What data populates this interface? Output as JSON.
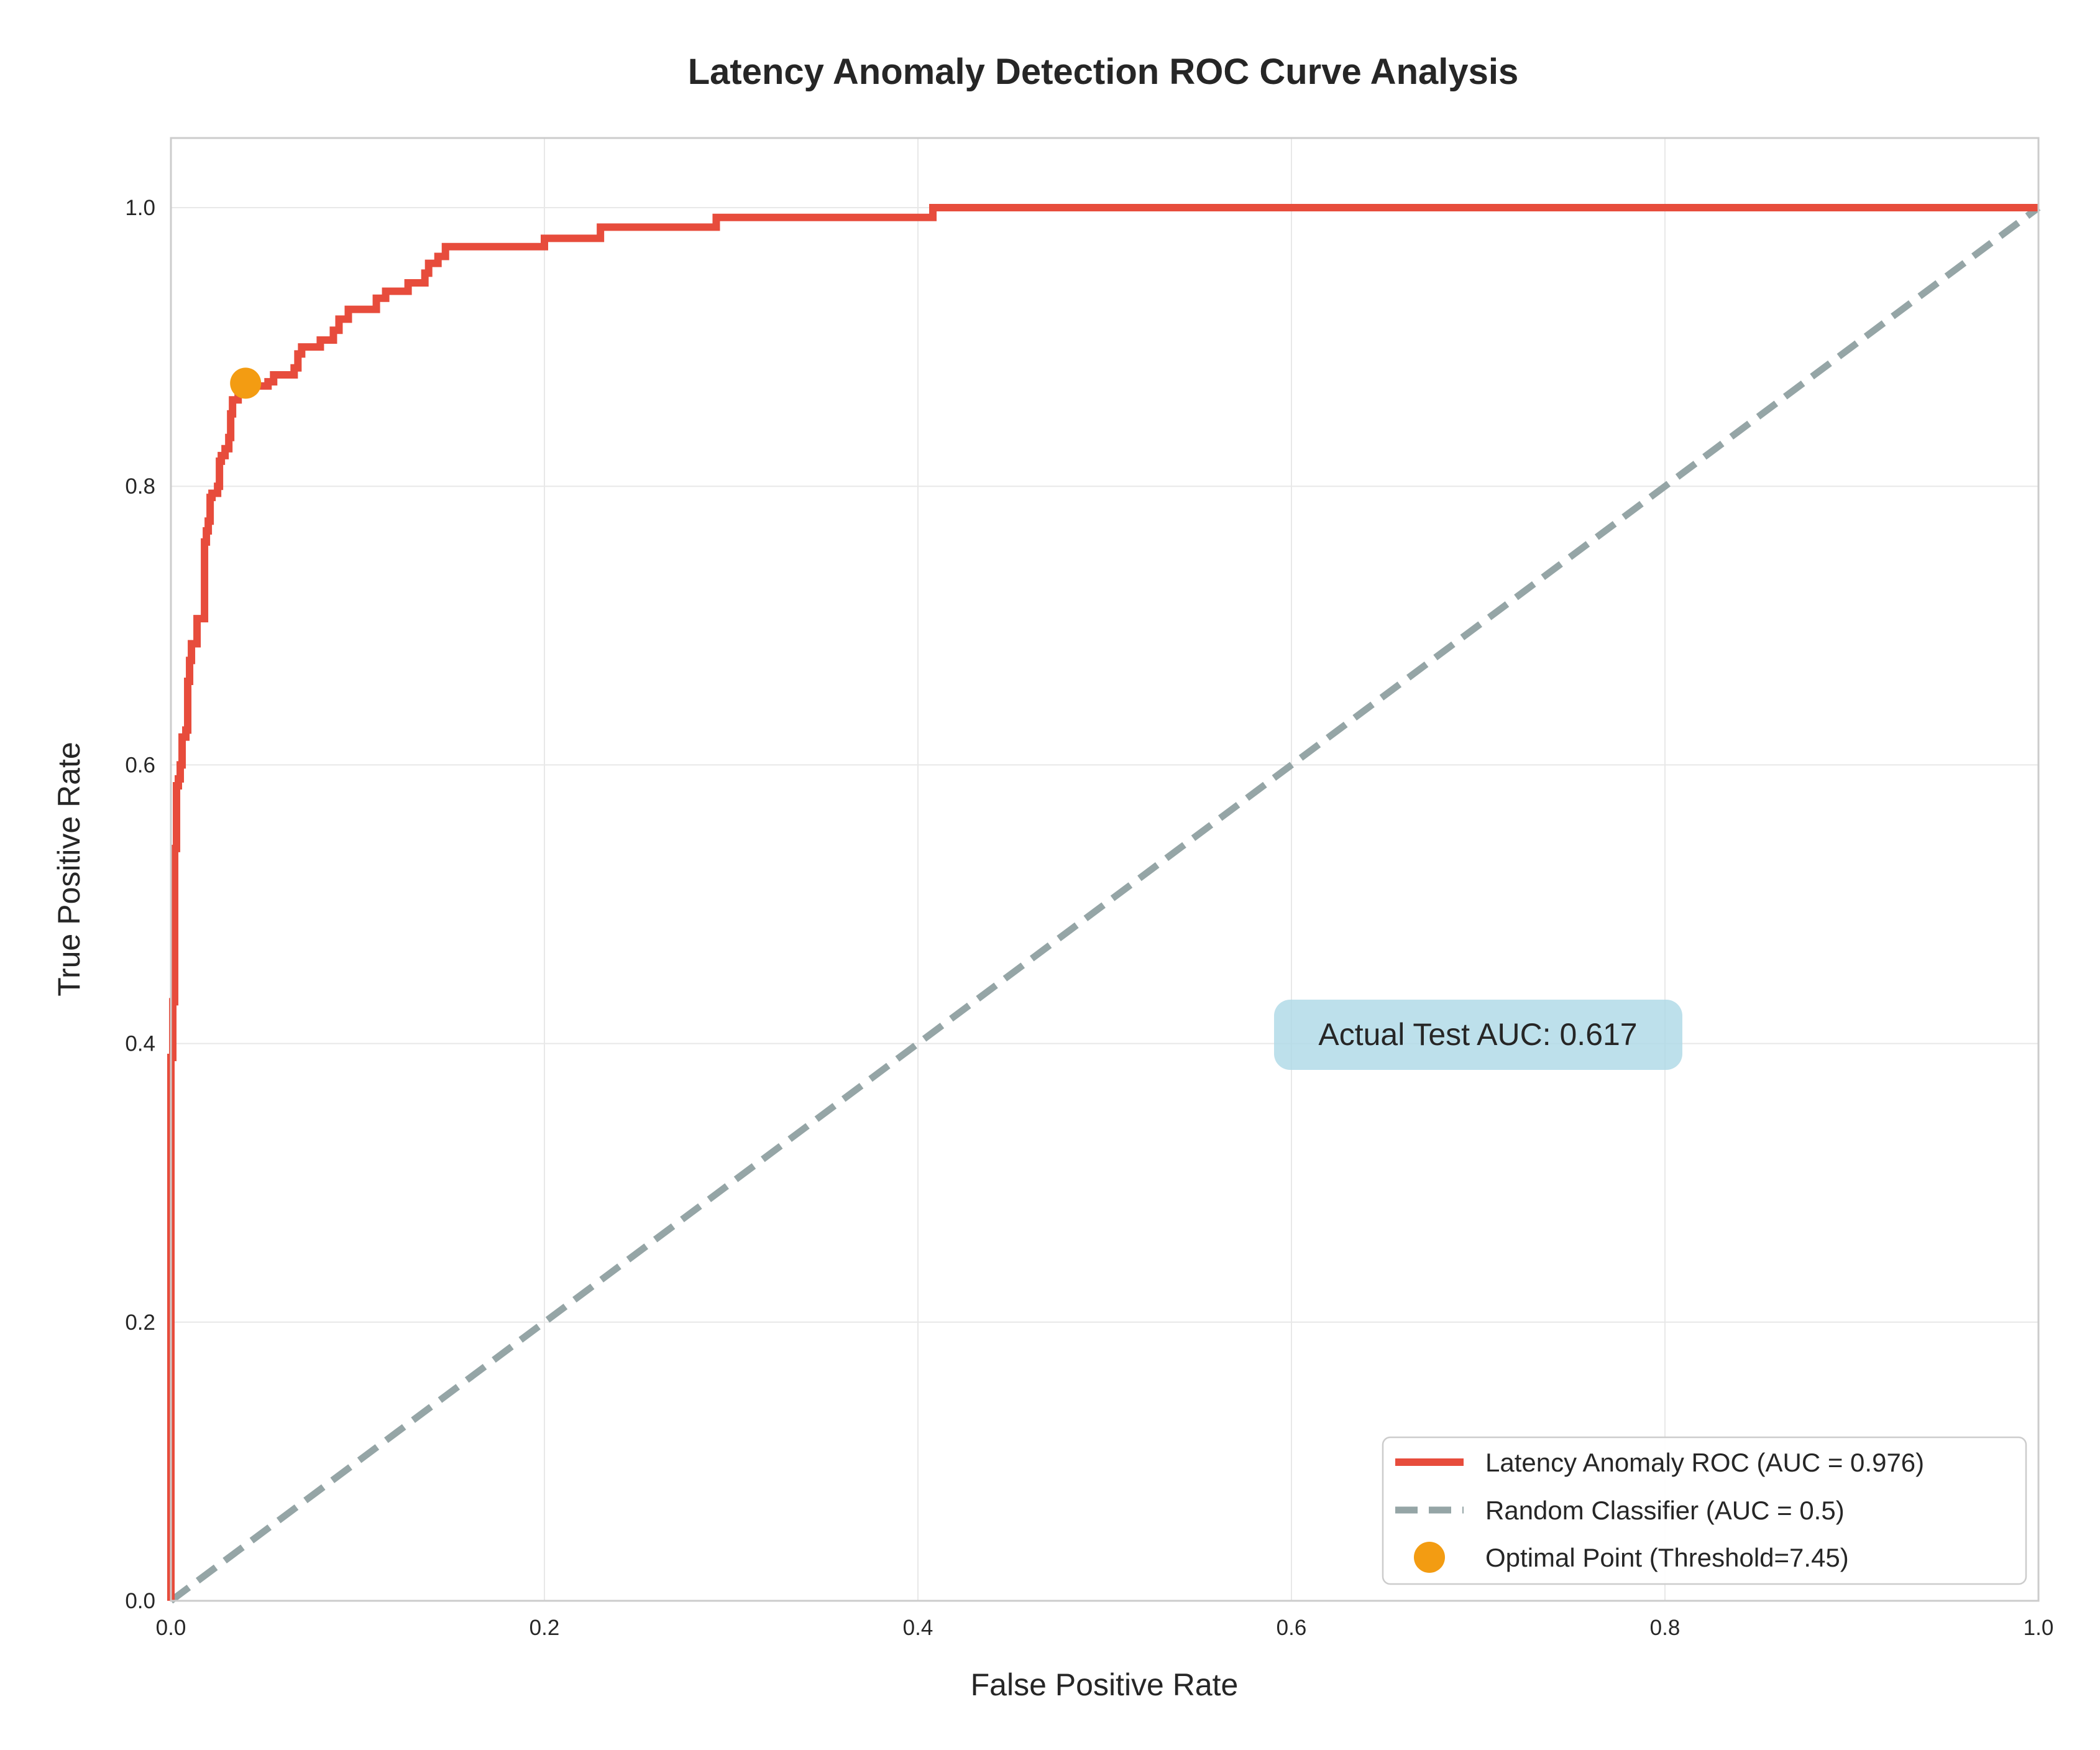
{
  "chart_data": {
    "type": "line",
    "title": "Latency Anomaly Detection ROC Curve Analysis",
    "xlabel": "False Positive Rate",
    "ylabel": "True Positive Rate",
    "xlim": [
      0,
      1
    ],
    "ylim": [
      0,
      1.05
    ],
    "x_ticks": [
      "0.0",
      "0.2",
      "0.4",
      "0.6",
      "0.8",
      "1.0"
    ],
    "y_ticks": [
      "0.0",
      "0.2",
      "0.4",
      "0.6",
      "0.8",
      "1.0"
    ],
    "grid": true,
    "legend_position": "lower-right",
    "series": [
      {
        "name": "Latency Anomaly ROC (AUC = 0.976)",
        "color": "#e74c3c",
        "style": "solid-step",
        "points": [
          [
            0.0,
            0.0
          ],
          [
            0.0,
            0.39
          ],
          [
            0.001,
            0.43
          ],
          [
            0.002,
            0.54
          ],
          [
            0.003,
            0.585
          ],
          [
            0.004,
            0.59
          ],
          [
            0.005,
            0.6
          ],
          [
            0.006,
            0.62
          ],
          [
            0.008,
            0.625
          ],
          [
            0.009,
            0.66
          ],
          [
            0.01,
            0.675
          ],
          [
            0.011,
            0.687
          ],
          [
            0.014,
            0.705
          ],
          [
            0.018,
            0.708
          ],
          [
            0.018,
            0.76
          ],
          [
            0.019,
            0.768
          ],
          [
            0.02,
            0.775
          ],
          [
            0.021,
            0.792
          ],
          [
            0.022,
            0.795
          ],
          [
            0.025,
            0.8
          ],
          [
            0.026,
            0.818
          ],
          [
            0.027,
            0.822
          ],
          [
            0.029,
            0.827
          ],
          [
            0.031,
            0.835
          ],
          [
            0.032,
            0.852
          ],
          [
            0.033,
            0.862
          ],
          [
            0.036,
            0.872
          ],
          [
            0.052,
            0.875
          ],
          [
            0.055,
            0.88
          ],
          [
            0.066,
            0.885
          ],
          [
            0.068,
            0.895
          ],
          [
            0.07,
            0.9
          ],
          [
            0.08,
            0.905
          ],
          [
            0.087,
            0.912
          ],
          [
            0.09,
            0.92
          ],
          [
            0.095,
            0.927
          ],
          [
            0.11,
            0.935
          ],
          [
            0.115,
            0.94
          ],
          [
            0.127,
            0.946
          ],
          [
            0.136,
            0.953
          ],
          [
            0.138,
            0.96
          ],
          [
            0.143,
            0.965
          ],
          [
            0.147,
            0.972
          ],
          [
            0.2,
            0.978
          ],
          [
            0.23,
            0.986
          ],
          [
            0.292,
            0.993
          ],
          [
            0.408,
            1.0
          ],
          [
            1.0,
            1.0
          ]
        ]
      },
      {
        "name": "Random Classifier (AUC = 0.5)",
        "color": "#95a5a6",
        "style": "dashed",
        "points": [
          [
            0,
            0
          ],
          [
            1,
            1
          ]
        ]
      },
      {
        "name": "Optimal Point (Threshold=7.45)",
        "color": "#f39c12",
        "style": "marker",
        "points": [
          [
            0.04,
            0.874
          ]
        ]
      }
    ],
    "annotation": {
      "text": "Actual Test AUC: 0.617",
      "x": 0.6,
      "y": 0.4,
      "background": "#add8e6"
    }
  }
}
